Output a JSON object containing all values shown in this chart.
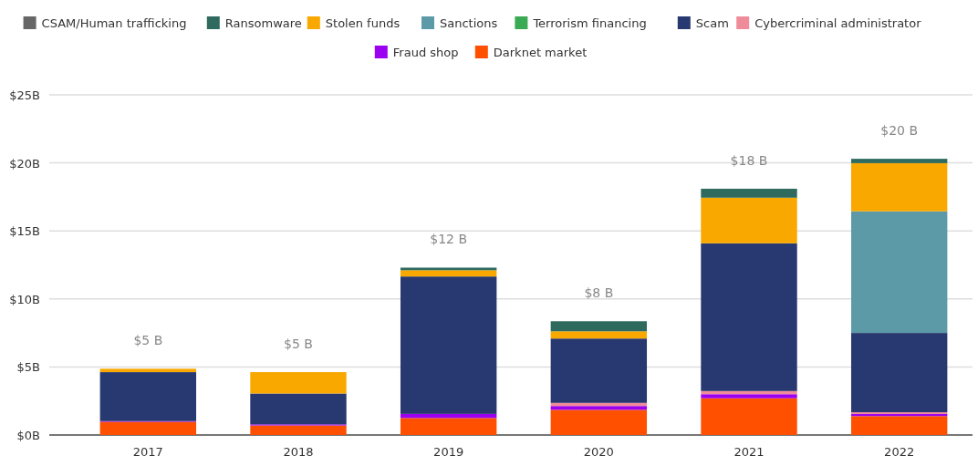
{
  "chart_data": {
    "type": "bar",
    "stacked": true,
    "categories": [
      "2017",
      "2018",
      "2019",
      "2020",
      "2021",
      "2022"
    ],
    "series": [
      {
        "name": "Darknet market",
        "color": "#ff5000",
        "values": [
          0.97,
          0.7,
          1.25,
          1.85,
          2.7,
          1.39
        ]
      },
      {
        "name": "Fraud shop",
        "color": "#9b00f0",
        "values": [
          0.05,
          0.08,
          0.3,
          0.28,
          0.3,
          0.15
        ]
      },
      {
        "name": "Cybercriminal administrator",
        "color": "#f08c9a",
        "values": [
          0,
          0,
          0,
          0.23,
          0.23,
          0.13
        ]
      },
      {
        "name": "Scam",
        "color": "#283870",
        "values": [
          3.6,
          2.27,
          10.1,
          4.73,
          10.86,
          5.83
        ]
      },
      {
        "name": "Terrorism financing",
        "color": "#3aaa55",
        "values": [
          0,
          0,
          0,
          0,
          0,
          0
        ]
      },
      {
        "name": "Sanctions",
        "color": "#5b9aa6",
        "values": [
          0,
          0,
          0,
          0,
          0,
          8.94
        ]
      },
      {
        "name": "Stolen funds",
        "color": "#f9a800",
        "values": [
          0.25,
          1.57,
          0.46,
          0.53,
          3.35,
          3.54
        ]
      },
      {
        "name": "Ransomware",
        "color": "#2e6b5e",
        "values": [
          0,
          0,
          0.19,
          0.74,
          0.66,
          0.32
        ]
      },
      {
        "name": "CSAM/Human trafficking",
        "color": "#666666",
        "values": [
          0,
          0,
          0,
          0,
          0,
          0
        ]
      }
    ],
    "totals": [
      "$5 B",
      "$5 B",
      "$12 B",
      "$8 B",
      "$18 B",
      "$20 B"
    ],
    "ylim": [
      0,
      25
    ],
    "yticks": [
      {
        "value": 0,
        "label": "$0B"
      },
      {
        "value": 5,
        "label": "$5B"
      },
      {
        "value": 10,
        "label": "$10B"
      },
      {
        "value": 15,
        "label": "$15B"
      },
      {
        "value": 20,
        "label": "$20B"
      },
      {
        "value": 25,
        "label": "$25B"
      }
    ],
    "grid": "y",
    "legend": "top"
  }
}
